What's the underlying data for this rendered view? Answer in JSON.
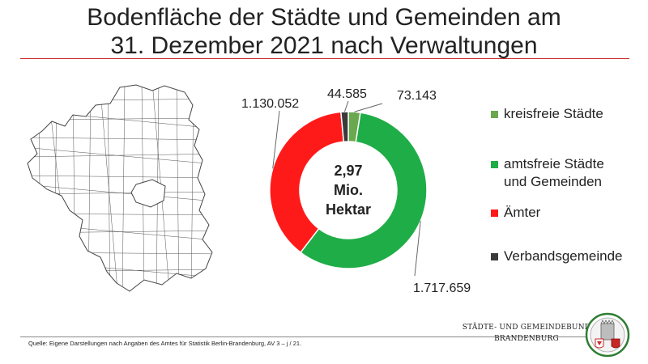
{
  "title_line1": "Bodenfläche der Städte und Gemeinden am",
  "title_line2": "31. Dezember 2021 nach Verwaltungen",
  "chart_data": {
    "type": "pie",
    "variant": "donut",
    "center_label": [
      "2,97",
      "Mio.",
      "Hektar"
    ],
    "categories": [
      "kreisfreie Städte",
      "amtsfreie Städte und Gemeinden",
      "Ämter",
      "Verbandsgemeinde"
    ],
    "values": [
      73143,
      1717659,
      1130052,
      44585
    ],
    "value_labels": [
      "73.143",
      "1.717.659",
      "1.130.052",
      "44.585"
    ],
    "colors": [
      "#6aa84f",
      "#1fad47",
      "#ff1a1a",
      "#3b3b3b"
    ],
    "legend_position": "right"
  },
  "legend": {
    "items": [
      {
        "lines": [
          "kreisfreie Städte"
        ],
        "color": "#6aa84f"
      },
      {
        "lines": [
          "amtsfreie Städte",
          "und Gemeinden"
        ],
        "color": "#1fad47"
      },
      {
        "lines": [
          "Ämter"
        ],
        "color": "#ff1a1a"
      },
      {
        "lines": [
          "Verbandsgemeinde"
        ],
        "color": "#3b3b3b"
      }
    ]
  },
  "footer": {
    "source": "Quelle:  Eigene Darstellungen nach Angaben des Amtes  für Statistik Berlin-Brandenburg, AV 3 – j / 21.",
    "org_line1": "STÄDTE-  UND GEMEINDEBUND",
    "org_line2": "BRANDENBURG"
  },
  "icons": {
    "map": "brandenburg-municipal-map",
    "logo": "coat-of-arms-icon"
  }
}
